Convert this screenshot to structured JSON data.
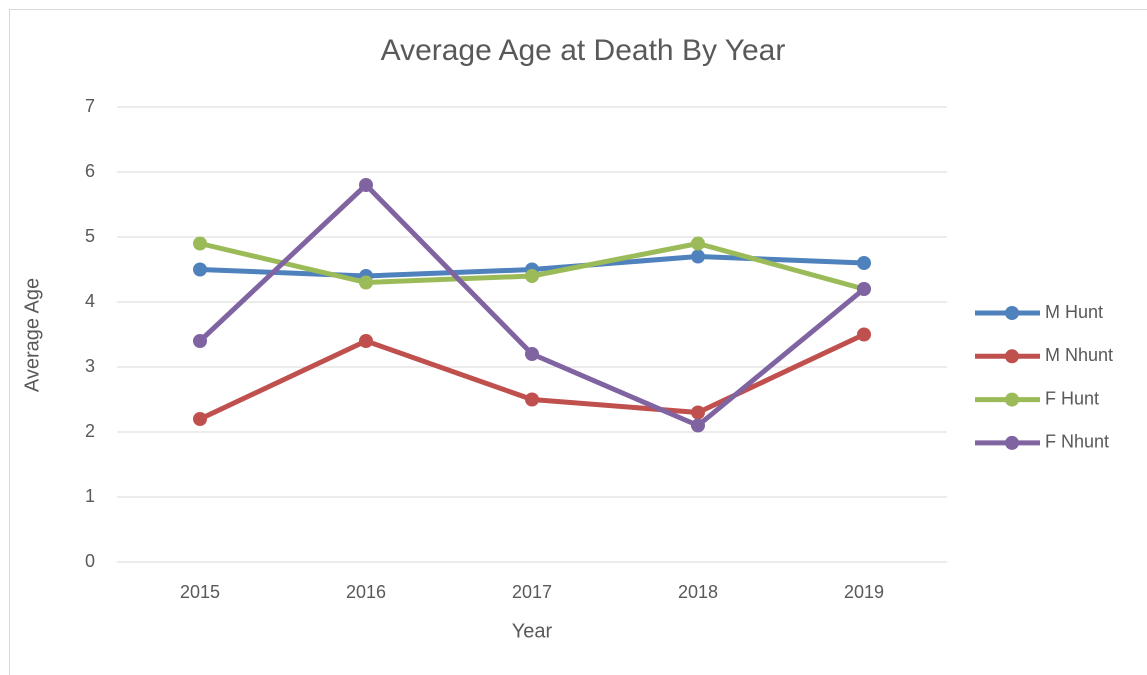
{
  "chart_data": {
    "type": "line",
    "title": "Average Age at Death By Year",
    "x_label": "Year",
    "y_label": "Average Age",
    "categories": [
      "2015",
      "2016",
      "2017",
      "2018",
      "2019"
    ],
    "series": [
      {
        "name": "M Hunt",
        "color": "#4f81bd",
        "values": [
          4.5,
          4.4,
          4.5,
          4.7,
          4.6
        ]
      },
      {
        "name": "M Nhunt",
        "color": "#c0504d",
        "values": [
          2.2,
          3.4,
          2.5,
          2.3,
          3.5
        ]
      },
      {
        "name": "F Hunt",
        "color": "#9bbb59",
        "values": [
          4.9,
          4.3,
          4.4,
          4.9,
          4.2
        ]
      },
      {
        "name": "F Nhunt",
        "color": "#8064a2",
        "values": [
          3.4,
          5.8,
          3.2,
          2.1,
          4.2
        ]
      }
    ],
    "ylim": [
      0,
      7
    ],
    "yticks": [
      0,
      1,
      2,
      3,
      4,
      5,
      6,
      7
    ],
    "grid": true,
    "legend": "right"
  }
}
